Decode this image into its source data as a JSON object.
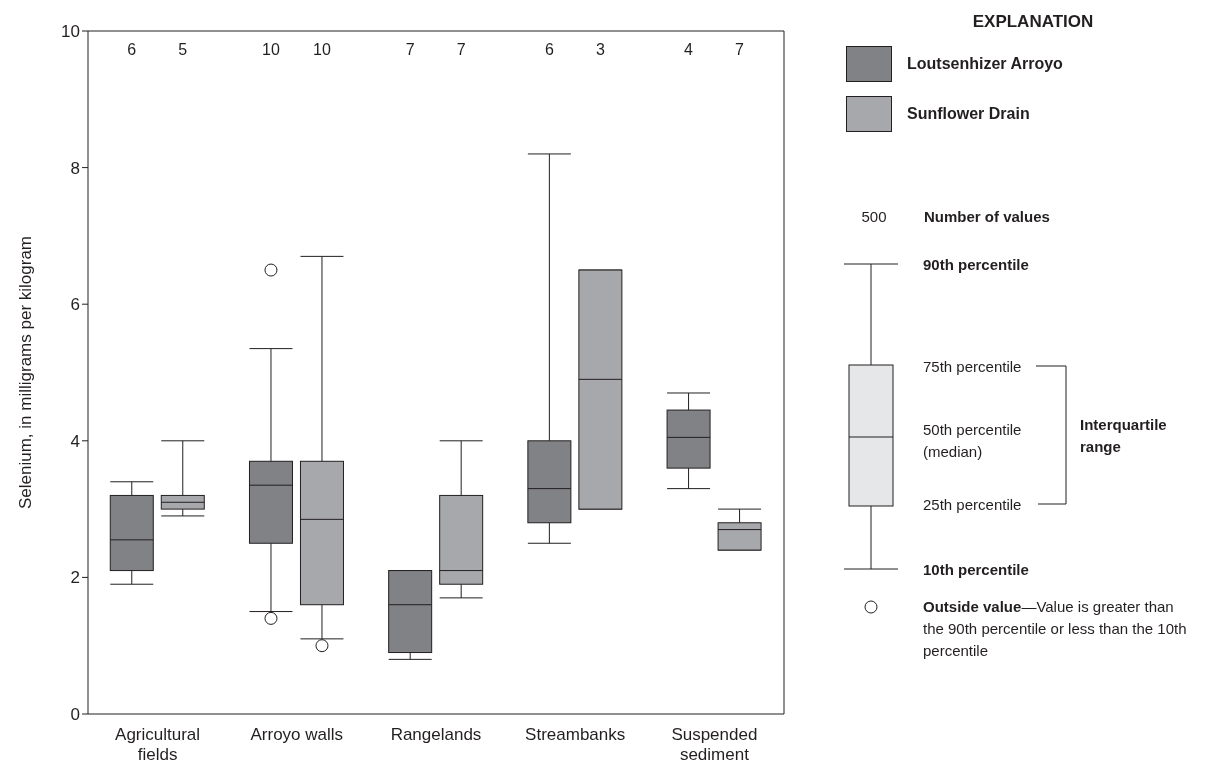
{
  "chart_data": {
    "type": "box",
    "ylabel": "Selenium, in milligrams per kilogram",
    "legend_title": "EXPLANATION",
    "categories": [
      "Agricultural fields",
      "Arroyo walls",
      "Rangelands",
      "Streambanks",
      "Suspended sediment"
    ],
    "ylim": [
      0,
      10
    ],
    "yticks": [
      0,
      2,
      4,
      6,
      8,
      10
    ],
    "legend": "right",
    "series": [
      {
        "name": "Loutsenhizer Arroyo",
        "color": "#808286",
        "value_labels": [
          "6",
          "10",
          "7",
          "6",
          "4"
        ],
        "boxes": [
          {
            "low": 1.9,
            "q1": 2.1,
            "median": 2.55,
            "q3": 3.2,
            "high": 3.4
          },
          {
            "low": 1.5,
            "q1": 2.5,
            "median": 3.35,
            "q3": 3.7,
            "high": 5.35,
            "outliers": [
              6.5,
              1.4
            ]
          },
          {
            "low": 0.8,
            "q1": 0.9,
            "median": 1.6,
            "q3": 2.1,
            "high": 2.1
          },
          {
            "low": 2.5,
            "q1": 2.8,
            "median": 3.3,
            "q3": 4.0,
            "high": 8.2
          },
          {
            "low": 3.3,
            "q1": 3.6,
            "median": 4.05,
            "q3": 4.45,
            "high": 4.7
          }
        ]
      },
      {
        "name": "Sunflower Drain",
        "color": "#a7a8ac",
        "value_labels": [
          "5",
          "10",
          "7",
          "3",
          "7"
        ],
        "boxes": [
          {
            "low": 2.9,
            "q1": 3.0,
            "median": 3.1,
            "q3": 3.2,
            "high": 4.0
          },
          {
            "low": 1.1,
            "q1": 1.6,
            "median": 2.85,
            "q3": 3.7,
            "high": 6.7,
            "outliers": [
              1.0
            ]
          },
          {
            "low": 1.7,
            "q1": 1.9,
            "median": 2.1,
            "q3": 3.2,
            "high": 4.0
          },
          {
            "low": 3.0,
            "q1": 3.0,
            "median": 4.9,
            "q3": 6.5,
            "high": 6.5
          },
          {
            "low": 2.4,
            "q1": 2.4,
            "median": 2.7,
            "q3": 2.8,
            "high": 3.0
          }
        ]
      }
    ],
    "annotations": [
      "500",
      "Number of values",
      "90th percentile",
      "75th percentile",
      "50th percentile (median)",
      "25th percentile",
      "10th percentile",
      "Interquartile range",
      "Outside value",
      "—Value is greater than the 90th percentile or less than the 10th percentile"
    ]
  }
}
